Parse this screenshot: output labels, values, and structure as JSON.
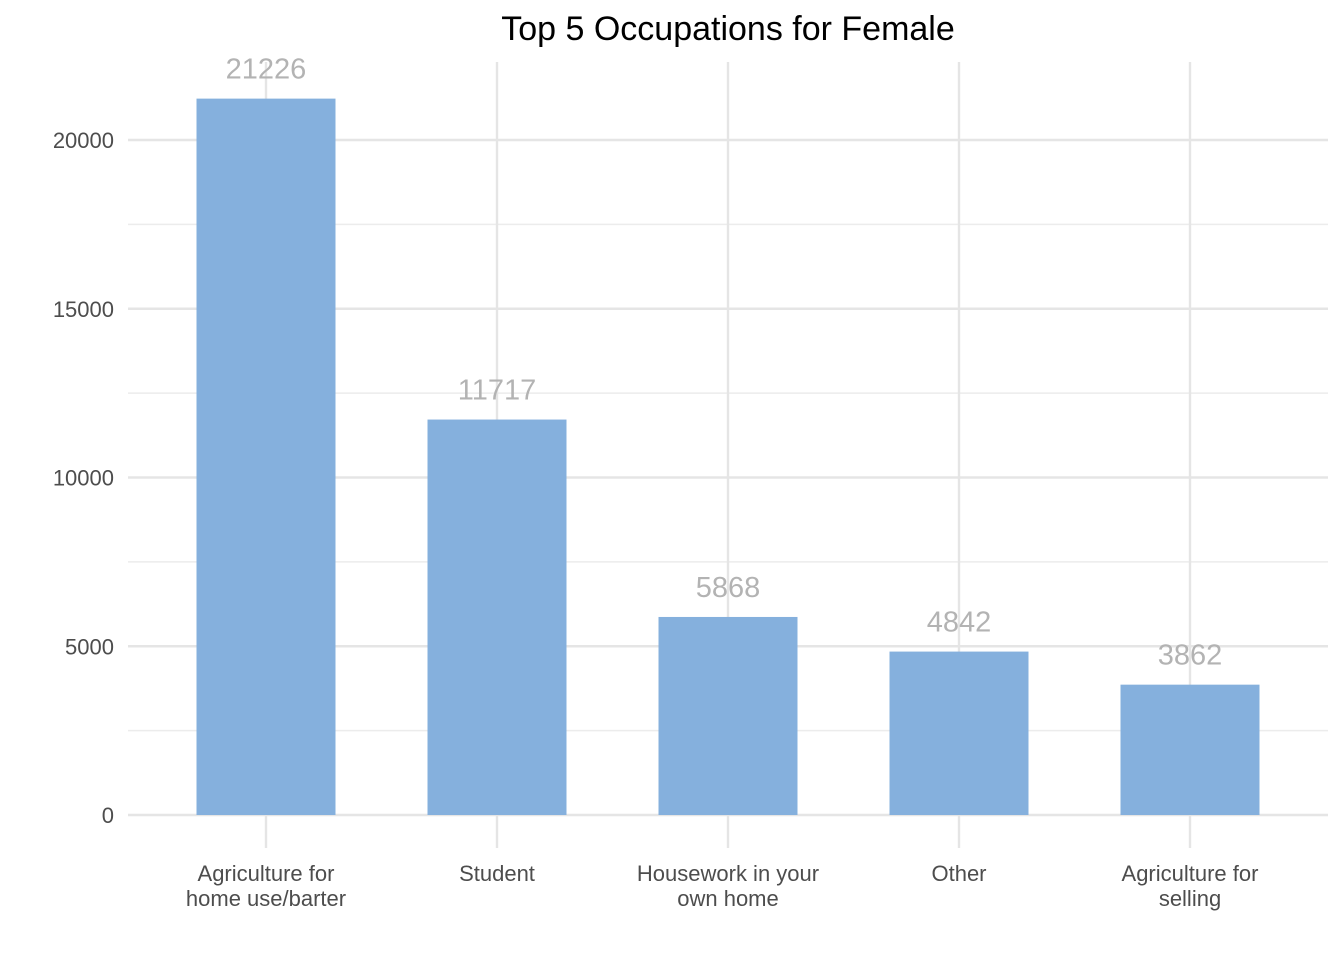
{
  "chart_data": {
    "type": "bar",
    "title": "Top 5 Occupations for Female",
    "xlabel": "",
    "ylabel": "",
    "categories": [
      [
        "Agriculture for",
        "home use/barter"
      ],
      [
        "Student"
      ],
      [
        "Housework in your",
        "own home"
      ],
      [
        "Other"
      ],
      [
        "Agriculture for",
        "selling"
      ]
    ],
    "values": [
      21226,
      11717,
      5868,
      4842,
      3862
    ],
    "data_labels": [
      "21226",
      "11717",
      "5868",
      "4842",
      "3862"
    ],
    "y_ticks": [
      0,
      5000,
      10000,
      15000,
      20000
    ],
    "y_tick_labels": [
      "0",
      "5000",
      "10000",
      "15000",
      "20000"
    ],
    "ylim": [
      0,
      22288
    ],
    "grid": true,
    "legend": "none",
    "bar_color": "#85b0dd"
  }
}
